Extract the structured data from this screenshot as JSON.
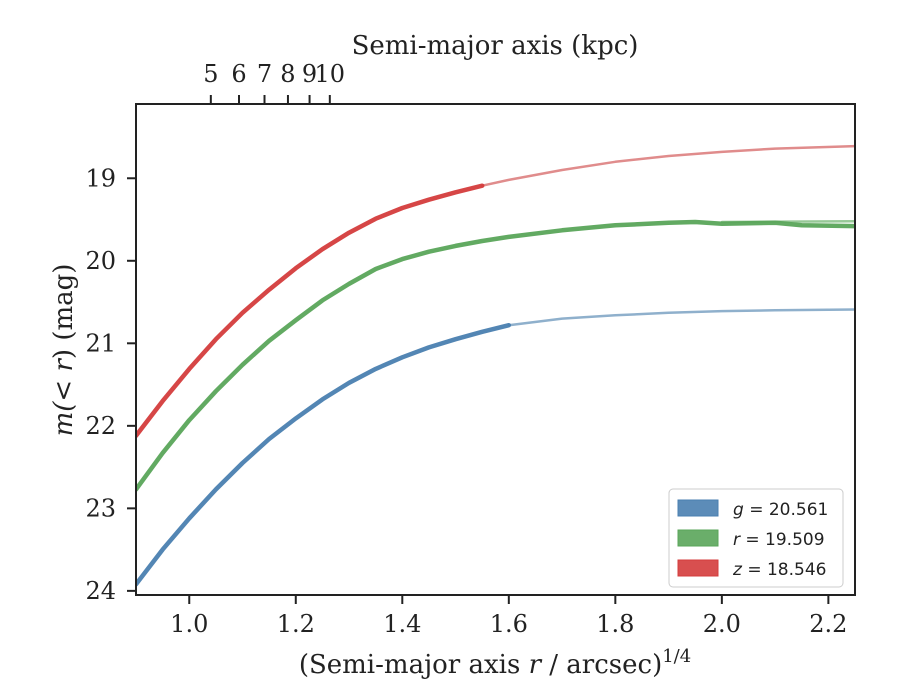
{
  "chart_data": {
    "type": "line",
    "xlabel_prefix": "(Semi-major axis ",
    "xlabel_var": "r",
    "xlabel_mid": " / arcsec)",
    "xlabel_sup": "1/4",
    "top_xlabel": "Semi-major axis (kpc)",
    "ylabel_prefix": "m",
    "ylabel_inner": "(< ",
    "ylabel_var": "r",
    "ylabel_suffix": ") (mag)",
    "xlim": [
      0.9,
      2.25
    ],
    "ylim": [
      24.05,
      18.1
    ],
    "y_inverted": true,
    "x_ticks": [
      1.0,
      1.2,
      1.4,
      1.6,
      1.8,
      2.0,
      2.2
    ],
    "x_tick_labels": [
      "1.0",
      "1.2",
      "1.4",
      "1.6",
      "1.8",
      "2.0",
      "2.2"
    ],
    "y_ticks": [
      19,
      20,
      21,
      22,
      23,
      24
    ],
    "y_tick_labels": [
      "19",
      "20",
      "21",
      "22",
      "23",
      "24"
    ],
    "top_ticks": [
      {
        "x": 1.0405,
        "label": "5"
      },
      {
        "x": 1.0934,
        "label": "6"
      },
      {
        "x": 1.1413,
        "label": "7"
      },
      {
        "x": 1.1853,
        "label": "8"
      },
      {
        "x": 1.2259,
        "label": "9"
      },
      {
        "x": 1.2639,
        "label": "10"
      }
    ],
    "grid": false,
    "legend_position": "bottom-right",
    "series": [
      {
        "name": "g = 20.561",
        "band": "g",
        "value": "20.561",
        "color": "#4a7fb0",
        "fit_color": "#8fb0cc",
        "data": [
          [
            0.9,
            23.92
          ],
          [
            0.95,
            23.5
          ],
          [
            1.0,
            23.12
          ],
          [
            1.05,
            22.77
          ],
          [
            1.1,
            22.45
          ],
          [
            1.15,
            22.16
          ],
          [
            1.2,
            21.91
          ],
          [
            1.25,
            21.68
          ],
          [
            1.3,
            21.48
          ],
          [
            1.35,
            21.31
          ],
          [
            1.4,
            21.17
          ],
          [
            1.45,
            21.05
          ],
          [
            1.5,
            20.95
          ],
          [
            1.55,
            20.86
          ],
          [
            1.6,
            20.78
          ]
        ],
        "fit": [
          [
            1.6,
            20.78
          ],
          [
            1.7,
            20.7
          ],
          [
            1.8,
            20.66
          ],
          [
            1.9,
            20.63
          ],
          [
            2.0,
            20.61
          ],
          [
            2.1,
            20.6
          ],
          [
            2.25,
            20.59
          ]
        ]
      },
      {
        "name": "r = 19.509",
        "band": "r",
        "value": "19.509",
        "color": "#5aa55a",
        "fit_color": "#96c896",
        "data": [
          [
            0.9,
            22.77
          ],
          [
            0.95,
            22.33
          ],
          [
            1.0,
            21.93
          ],
          [
            1.05,
            21.58
          ],
          [
            1.1,
            21.26
          ],
          [
            1.15,
            20.97
          ],
          [
            1.2,
            20.72
          ],
          [
            1.25,
            20.48
          ],
          [
            1.3,
            20.28
          ],
          [
            1.35,
            20.1
          ],
          [
            1.4,
            19.98
          ],
          [
            1.45,
            19.89
          ],
          [
            1.5,
            19.82
          ],
          [
            1.55,
            19.76
          ],
          [
            1.6,
            19.71
          ],
          [
            1.7,
            19.63
          ],
          [
            1.8,
            19.57
          ],
          [
            1.9,
            19.54
          ],
          [
            1.95,
            19.53
          ],
          [
            2.0,
            19.55
          ],
          [
            2.1,
            19.54
          ],
          [
            2.15,
            19.57
          ],
          [
            2.25,
            19.58
          ]
        ],
        "fit": [
          [
            2.0,
            19.53
          ],
          [
            2.25,
            19.52
          ]
        ]
      },
      {
        "name": "z = 18.546",
        "band": "z",
        "value": "18.546",
        "color": "#d43c3c",
        "fit_color": "#e08c8c",
        "data": [
          [
            0.9,
            22.12
          ],
          [
            0.95,
            21.7
          ],
          [
            1.0,
            21.31
          ],
          [
            1.05,
            20.95
          ],
          [
            1.1,
            20.63
          ],
          [
            1.15,
            20.35
          ],
          [
            1.2,
            20.09
          ],
          [
            1.25,
            19.86
          ],
          [
            1.3,
            19.66
          ],
          [
            1.35,
            19.49
          ],
          [
            1.4,
            19.36
          ],
          [
            1.45,
            19.26
          ],
          [
            1.5,
            19.17
          ],
          [
            1.55,
            19.09
          ]
        ],
        "fit": [
          [
            1.55,
            19.09
          ],
          [
            1.6,
            19.02
          ],
          [
            1.7,
            18.9
          ],
          [
            1.8,
            18.8
          ],
          [
            1.9,
            18.73
          ],
          [
            2.0,
            18.68
          ],
          [
            2.1,
            18.64
          ],
          [
            2.25,
            18.61
          ]
        ]
      }
    ]
  }
}
